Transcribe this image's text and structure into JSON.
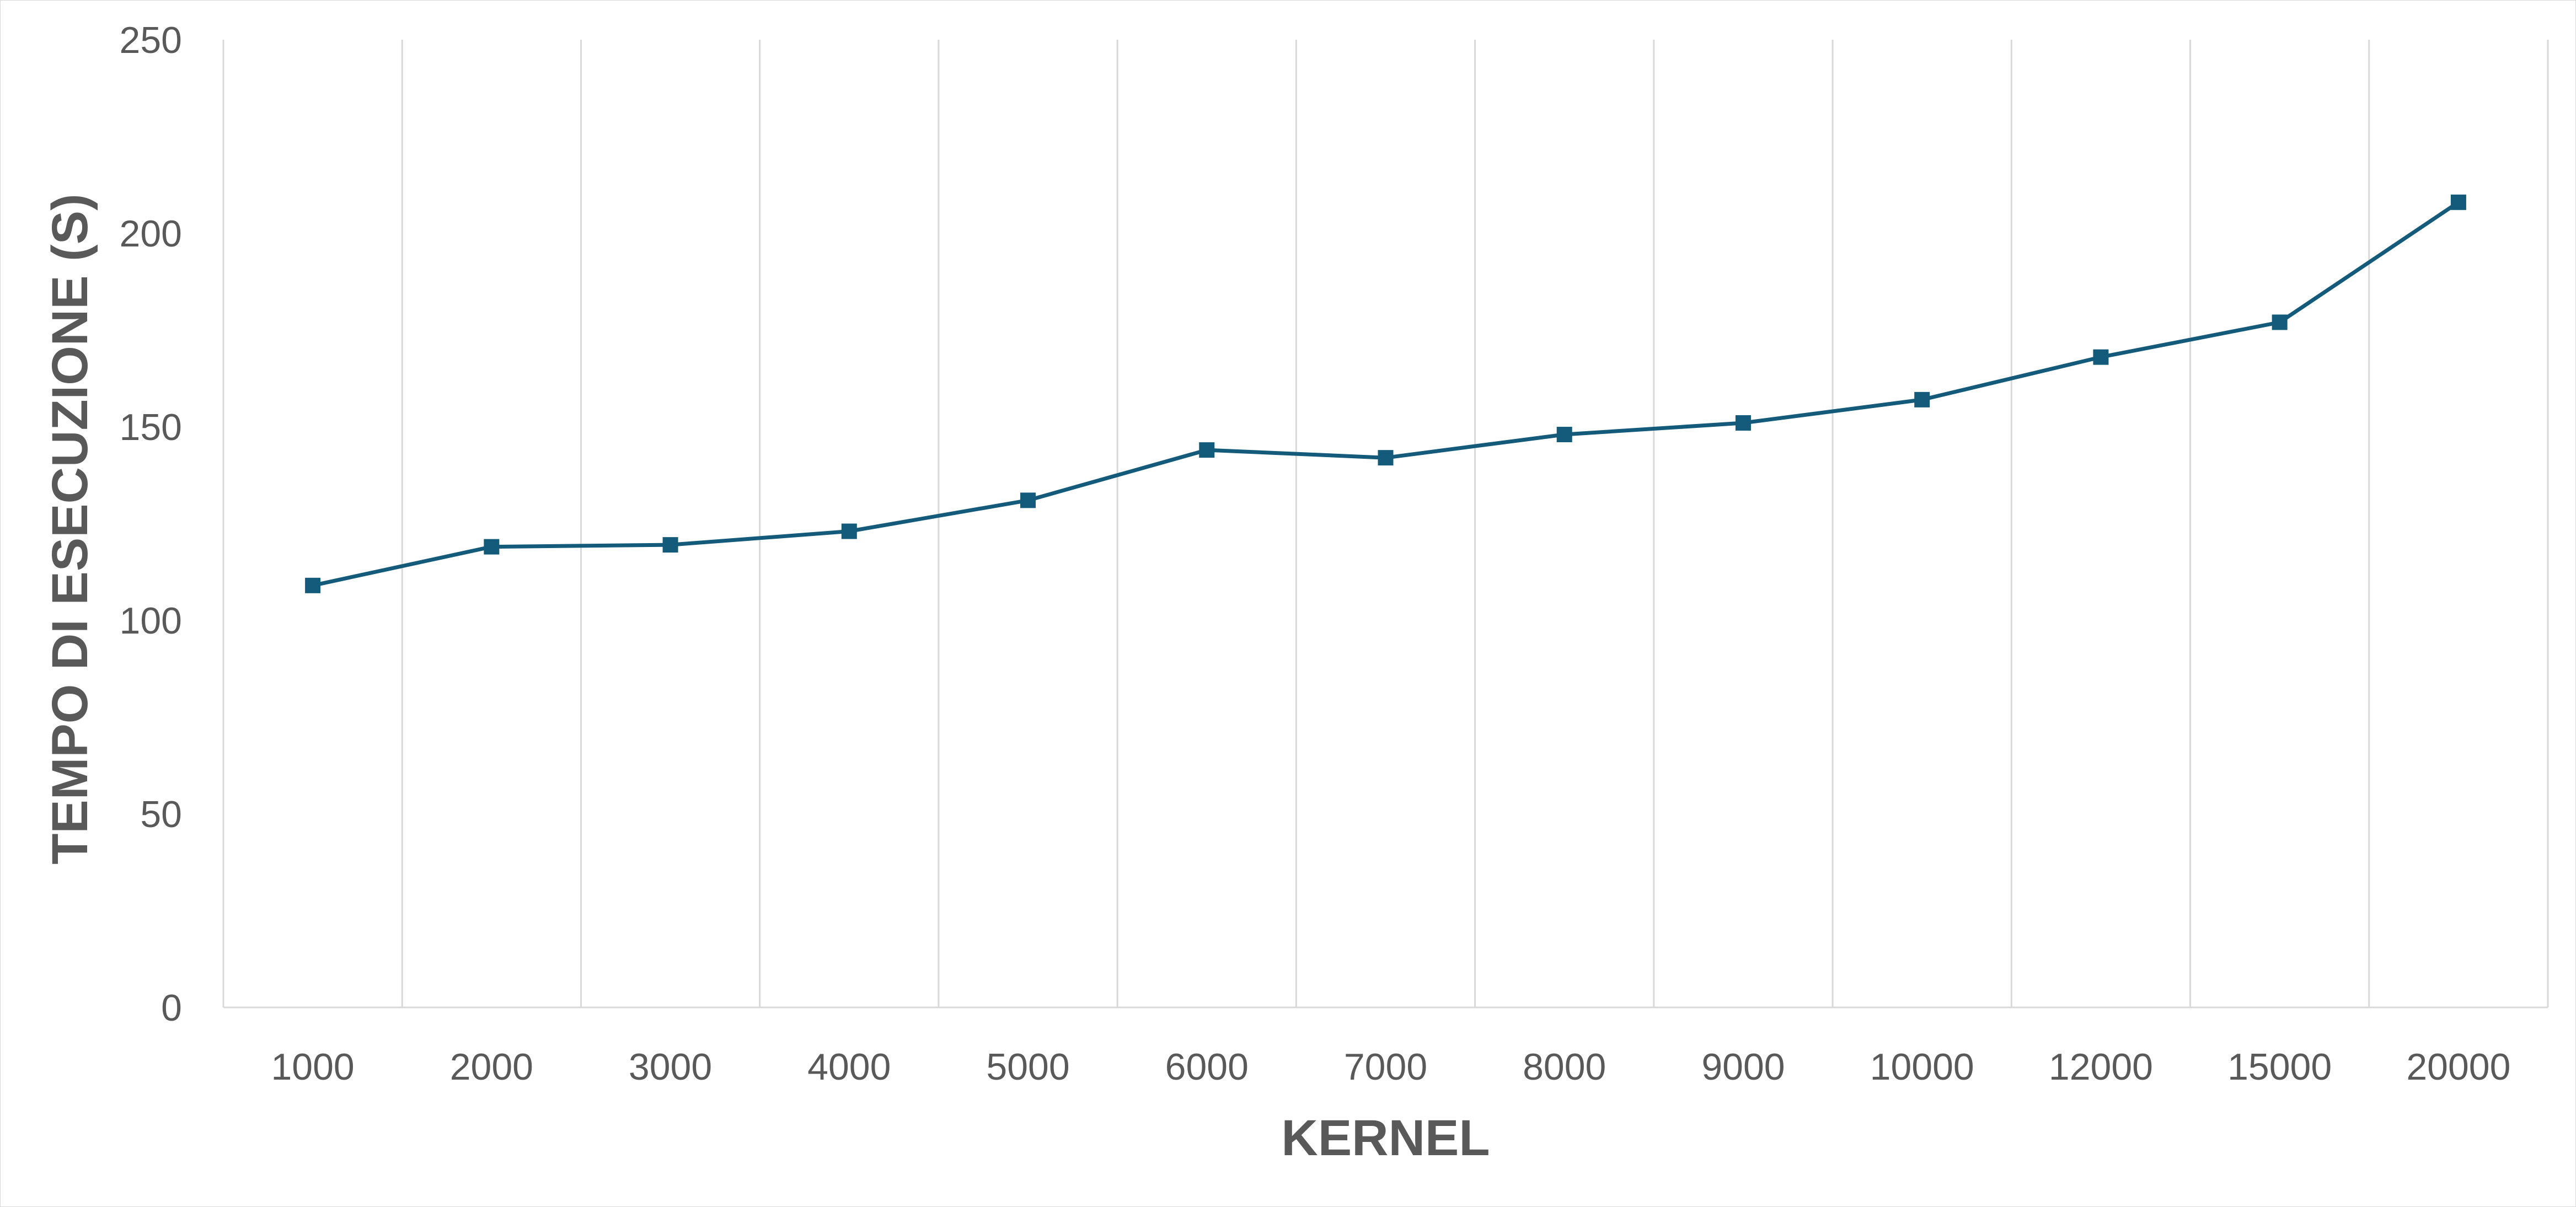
{
  "chart_data": {
    "type": "line",
    "title": "",
    "xlabel": "KERNEL",
    "ylabel": "TEMPO DI ESECUZIONE (S)",
    "categories": [
      "1000",
      "2000",
      "3000",
      "4000",
      "5000",
      "6000",
      "7000",
      "8000",
      "9000",
      "10000",
      "12000",
      "15000",
      "20000"
    ],
    "series": [
      {
        "values": [
          109,
          119,
          119.5,
          123,
          131,
          144,
          142,
          148,
          151,
          157,
          168,
          177,
          208
        ],
        "color": "#145A7A",
        "marker": "square"
      }
    ],
    "ylim": [
      0,
      250
    ],
    "yticks": [
      0,
      50,
      100,
      150,
      200,
      250
    ],
    "grid": "vertical",
    "legend": "none"
  }
}
